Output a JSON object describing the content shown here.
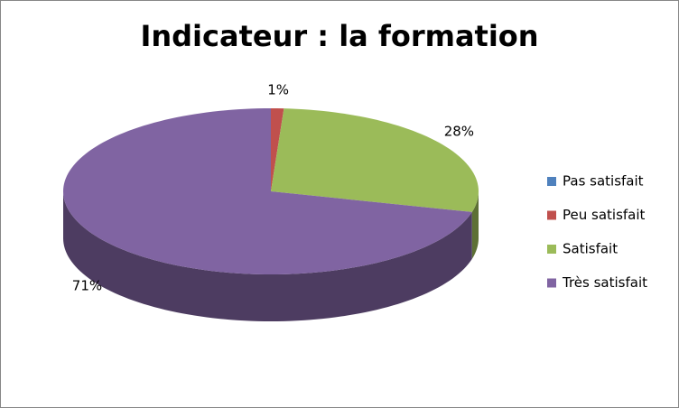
{
  "chart_data": {
    "type": "pie3d",
    "title": "Indicateur : la formation",
    "categories": [
      "Pas satisfait",
      "Peu satisfait",
      "Satisfait",
      "Très satisfait"
    ],
    "values": [
      0,
      1,
      28,
      71
    ],
    "value_labels": [
      null,
      "1%",
      "28%",
      "71%"
    ],
    "colors": [
      "#4f81bd",
      "#c0504d",
      "#9bbb59",
      "#8064a2"
    ],
    "legend": "right"
  }
}
